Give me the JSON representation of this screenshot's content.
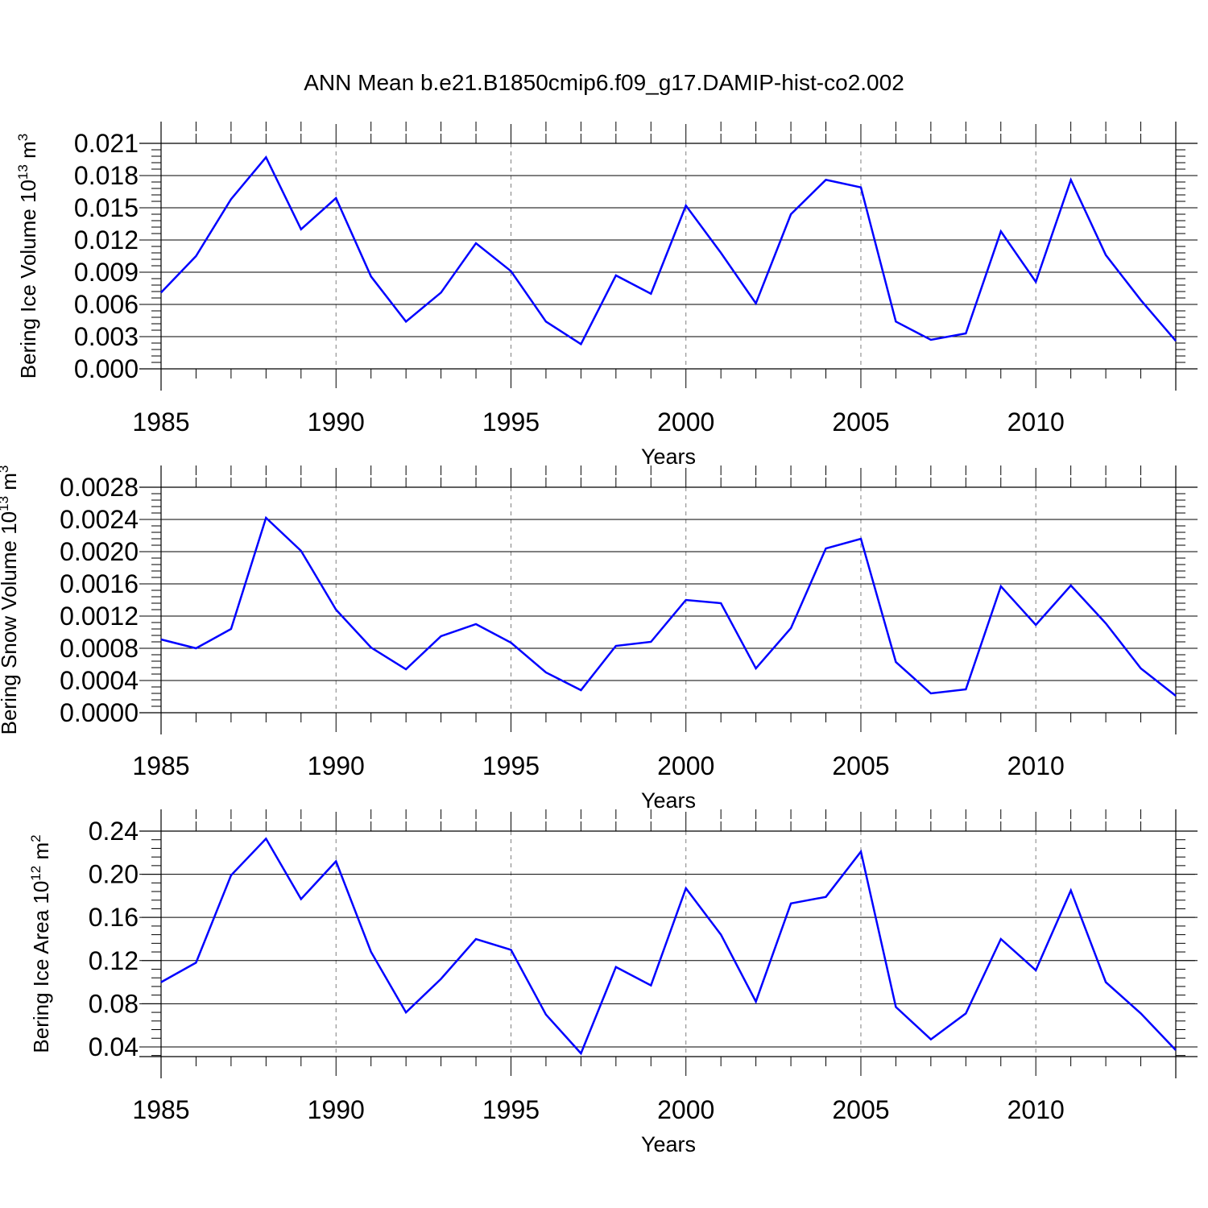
{
  "title": "ANN Mean b.e21.B1850cmip6.f09_g17.DAMIP-hist-co2.002",
  "colors": {
    "line": "#0000ff",
    "axis": "#000000",
    "grid": "#808080"
  },
  "chart_data": [
    {
      "type": "line",
      "ylabel": {
        "base": "Bering Ice Volume 10",
        "exp": "13",
        "unit": " m",
        "unit_exp": "3"
      },
      "xlabel": "Years",
      "xlim": [
        1985,
        2014
      ],
      "ylim": [
        0,
        0.021
      ],
      "x_ticks": [
        1985,
        1990,
        1995,
        2000,
        2005,
        2010
      ],
      "y_ticks": [
        "0.000",
        "0.003",
        "0.006",
        "0.009",
        "0.012",
        "0.015",
        "0.018",
        "0.021"
      ],
      "grid": "vertical dashed at major x ticks",
      "x": [
        1985,
        1986,
        1987,
        1988,
        1989,
        1990,
        1991,
        1992,
        1993,
        1994,
        1995,
        1996,
        1997,
        1998,
        1999,
        2000,
        2001,
        2002,
        2003,
        2004,
        2005,
        2006,
        2007,
        2008,
        2009,
        2010,
        2011,
        2012,
        2013,
        2014
      ],
      "values": [
        0.0071,
        0.0105,
        0.0158,
        0.0197,
        0.013,
        0.0159,
        0.0086,
        0.0044,
        0.0071,
        0.0117,
        0.0091,
        0.0044,
        0.0023,
        0.0087,
        0.007,
        0.0152,
        0.0108,
        0.0061,
        0.0144,
        0.0176,
        0.0169,
        0.0044,
        0.0027,
        0.0033,
        0.0128,
        0.0081,
        0.0176,
        0.0106,
        0.0064,
        0.0026
      ]
    },
    {
      "type": "line",
      "ylabel": {
        "base": "Bering Snow Volume 10",
        "exp": "13",
        "unit": " m",
        "unit_exp": "3"
      },
      "xlabel": "Years",
      "xlim": [
        1985,
        2014
      ],
      "ylim": [
        0,
        0.0028
      ],
      "x_ticks": [
        1985,
        1990,
        1995,
        2000,
        2005,
        2010
      ],
      "y_ticks": [
        "0.0000",
        "0.0004",
        "0.0008",
        "0.0012",
        "0.0016",
        "0.0020",
        "0.0024",
        "0.0028"
      ],
      "grid": "vertical dashed at major x ticks",
      "x": [
        1985,
        1986,
        1987,
        1988,
        1989,
        1990,
        1991,
        1992,
        1993,
        1994,
        1995,
        1996,
        1997,
        1998,
        1999,
        2000,
        2001,
        2002,
        2003,
        2004,
        2005,
        2006,
        2007,
        2008,
        2009,
        2010,
        2011,
        2012,
        2013,
        2014
      ],
      "values": [
        0.00091,
        0.0008,
        0.00104,
        0.00242,
        0.00201,
        0.00128,
        0.00081,
        0.00054,
        0.00095,
        0.0011,
        0.00087,
        0.0005,
        0.00028,
        0.00083,
        0.00088,
        0.0014,
        0.00136,
        0.00055,
        0.00105,
        0.00204,
        0.00216,
        0.00063,
        0.00024,
        0.00029,
        0.00157,
        0.00109,
        0.00158,
        0.00111,
        0.00055,
        0.00021
      ]
    },
    {
      "type": "line",
      "ylabel": {
        "base": "Bering Ice Area 10",
        "exp": "12",
        "unit": " m",
        "unit_exp": "2"
      },
      "xlabel": "Years",
      "xlim": [
        1985,
        2014
      ],
      "ylim": [
        0.031,
        0.24
      ],
      "x_ticks": [
        1985,
        1990,
        1995,
        2000,
        2005,
        2010
      ],
      "y_ticks": [
        "0.04",
        "0.08",
        "0.12",
        "0.16",
        "0.20",
        "0.24"
      ],
      "grid": "vertical dashed at major x ticks",
      "x": [
        1985,
        1986,
        1987,
        1988,
        1989,
        1990,
        1991,
        1992,
        1993,
        1994,
        1995,
        1996,
        1997,
        1998,
        1999,
        2000,
        2001,
        2002,
        2003,
        2004,
        2005,
        2006,
        2007,
        2008,
        2009,
        2010,
        2011,
        2012,
        2013,
        2014
      ],
      "values": [
        0.1,
        0.118,
        0.199,
        0.233,
        0.177,
        0.212,
        0.128,
        0.072,
        0.103,
        0.14,
        0.13,
        0.07,
        0.034,
        0.114,
        0.097,
        0.187,
        0.144,
        0.082,
        0.173,
        0.179,
        0.221,
        0.077,
        0.047,
        0.071,
        0.14,
        0.111,
        0.185,
        0.1,
        0.071,
        0.037
      ]
    }
  ]
}
